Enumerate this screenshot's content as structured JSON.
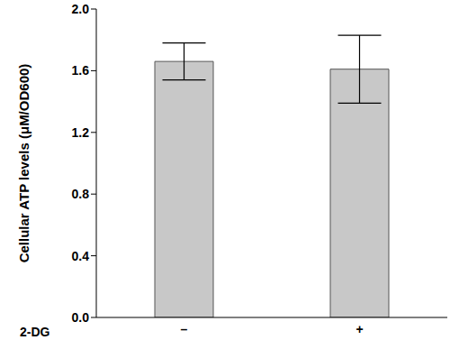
{
  "chart_data": {
    "type": "bar",
    "x_label": "2-DG",
    "y_label": "Cellular ATP levels (μM/OD600)",
    "categories": [
      "–",
      "+"
    ],
    "values": [
      1.66,
      1.61
    ],
    "errors": [
      0.12,
      0.22
    ],
    "color": "#c8c8c8",
    "ylim": [
      0,
      2
    ],
    "yticks": [
      {
        "value": 0,
        "label": "0.0"
      },
      0.4,
      0.8,
      1.2,
      1.6,
      {
        "value": 2,
        "label": "2.0"
      }
    ],
    "grid": false
  }
}
